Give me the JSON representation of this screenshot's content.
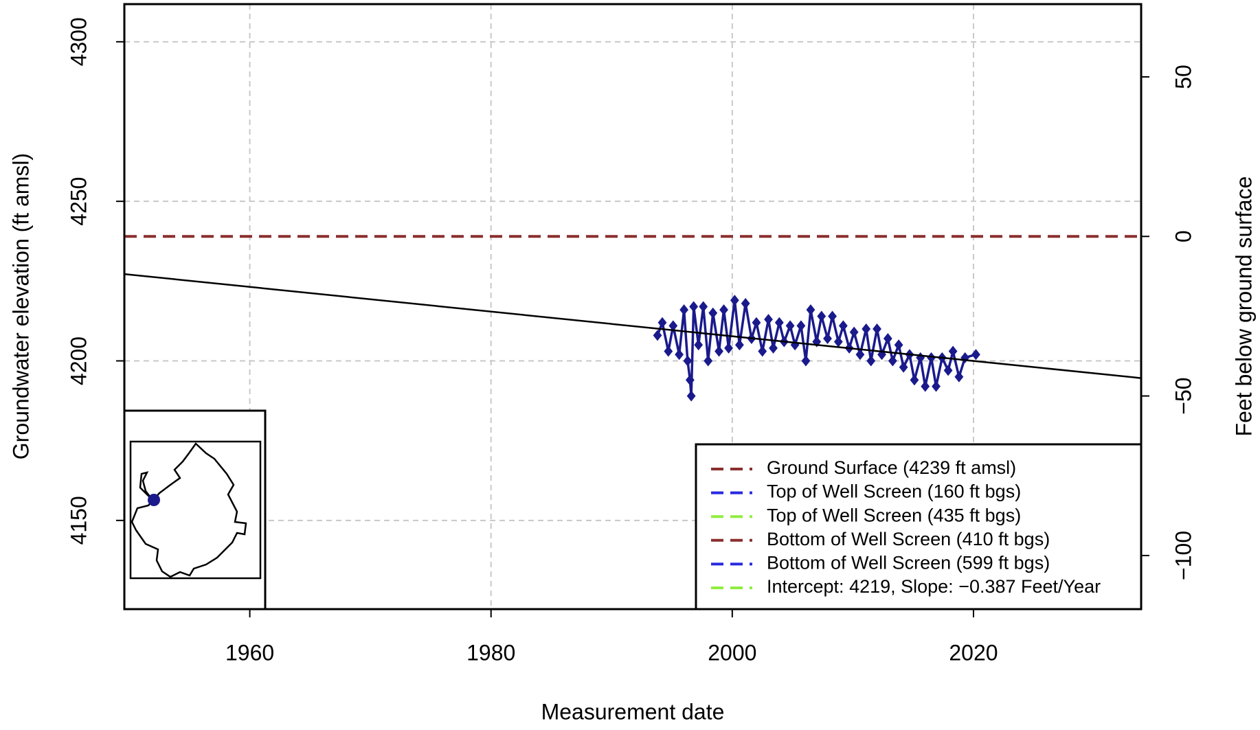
{
  "chart_data": {
    "type": "line",
    "xlabel": "Measurement date",
    "ylabel": "Groundwater elevation (ft amsl)",
    "y2label": "Feet below ground surface",
    "xlim": [
      1949.6,
      2033.9
    ],
    "xticks": [
      1960,
      1980,
      2000,
      2020
    ],
    "ylim": [
      4122.2,
      4311.8
    ],
    "yticks": [
      4150,
      4200,
      4250,
      4300
    ],
    "y2lim": [
      -116.8,
      72.8
    ],
    "y2ticks": [
      {
        "value": -100,
        "label": "−100"
      },
      {
        "value": -50,
        "label": "−50"
      },
      0,
      50
    ],
    "grid": true,
    "hlines": [
      {
        "value": 4239,
        "color": "#8b2e2e"
      }
    ],
    "series": [
      {
        "color": "#1a1a8c",
        "marker": "diamond",
        "x": [
          1993.8,
          1994.2,
          1994.7,
          1995.1,
          1995.6,
          1996.0,
          1996.3,
          1996.5,
          1996.6,
          1996.8,
          1997.2,
          1997.6,
          1998.0,
          1998.4,
          1998.9,
          1999.3,
          1999.7,
          2000.2,
          2000.6,
          2001.1,
          2001.6,
          2002.0,
          2002.5,
          2003.0,
          2003.4,
          2003.9,
          2004.3,
          2004.8,
          2005.2,
          2005.7,
          2006.1,
          2006.5,
          2007.0,
          2007.4,
          2007.9,
          2008.3,
          2008.8,
          2009.2,
          2009.7,
          2010.1,
          2010.6,
          2011.1,
          2011.5,
          2012.0,
          2012.4,
          2012.9,
          2013.3,
          2013.8,
          2014.2,
          2014.7,
          2015.1,
          2015.6,
          2016.0,
          2016.5,
          2016.9,
          2017.4,
          2017.9,
          2018.3,
          2018.8,
          2019.3,
          2020.2
        ],
        "values": [
          4208,
          4212,
          4203,
          4211,
          4202,
          4216,
          4200,
          4194,
          4189,
          4217,
          4205,
          4217,
          4200,
          4215,
          4203,
          4216,
          4204,
          4219,
          4205,
          4218,
          4207,
          4212,
          4203,
          4213,
          4204,
          4212,
          4206,
          4211,
          4205,
          4211,
          4200,
          4216,
          4206,
          4214,
          4207,
          4214,
          4206,
          4211,
          4204,
          4209,
          4202,
          4210,
          4200,
          4210,
          4202,
          4207,
          4200,
          4205,
          4198,
          4202,
          4194,
          4201,
          4192,
          4201,
          4192,
          4201,
          4197,
          4203,
          4195,
          4201,
          4202
        ]
      },
      {
        "color": "#000000",
        "marker": "none",
        "x": [
          1949.6,
          2033.9
        ],
        "values": [
          4227.2,
          4194.6
        ]
      }
    ],
    "legend": [
      {
        "label": "Ground Surface (4239 ft amsl)",
        "color": "#8b2e2e"
      },
      {
        "label": "Top of Well Screen (160 ft bgs)",
        "color": "#2828e0"
      },
      {
        "label": "Top of Well Screen (435 ft bgs)",
        "color": "#90ee40"
      },
      {
        "label": "Bottom of Well Screen (410 ft bgs)",
        "color": "#8b2e2e"
      },
      {
        "label": "Bottom of Well Screen (599 ft bgs)",
        "color": "#2828e0"
      },
      {
        "label": "Intercept: 4219, Slope: −0.387 Feet/Year",
        "color": "#90ee40"
      }
    ]
  }
}
